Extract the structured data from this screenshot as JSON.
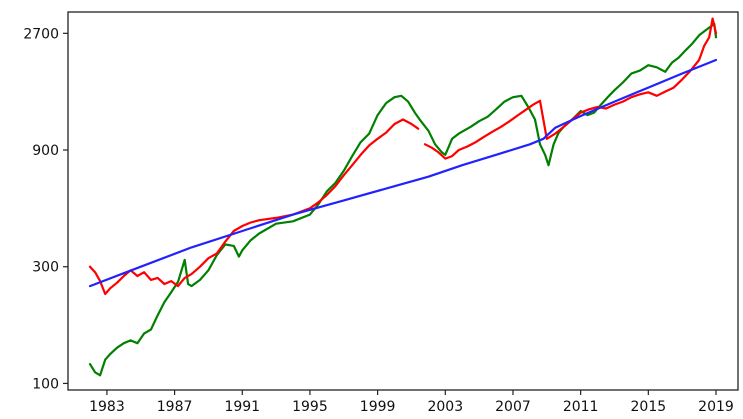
{
  "chart_data": {
    "type": "line",
    "title": "",
    "xlabel": "",
    "ylabel": "",
    "y_scale": "log",
    "xlim": [
      1980.7,
      2020.3
    ],
    "ylim": [
      94,
      3300
    ],
    "x_ticks": [
      1983,
      1987,
      1991,
      1995,
      1999,
      2003,
      2007,
      2011,
      2015,
      2019
    ],
    "y_ticks": [
      100,
      300,
      900,
      2700
    ],
    "grid": false,
    "legend": "none",
    "series": [
      {
        "color": "#008000",
        "x": [
          1982.0,
          1982.3,
          1982.6,
          1982.9,
          1983.2,
          1983.6,
          1984.0,
          1984.4,
          1984.8,
          1985.2,
          1985.6,
          1986.0,
          1986.4,
          1986.8,
          1987.2,
          1987.6,
          1987.8,
          1988.0,
          1988.5,
          1989.0,
          1989.5,
          1990.0,
          1990.5,
          1990.8,
          1991.0,
          1991.5,
          1992.0,
          1993.0,
          1994.0,
          1995.0,
          1995.5,
          1996.0,
          1996.5,
          1997.0,
          1997.5,
          1998.0,
          1998.5,
          1999.0,
          1999.5,
          2000.0,
          2000.4,
          2000.8,
          2001.2,
          2001.6,
          2002.0,
          2002.4,
          2002.8,
          2003.0,
          2003.4,
          2003.8,
          2004.5,
          2005.0,
          2005.5,
          2006.0,
          2006.5,
          2007.0,
          2007.5,
          2007.9,
          2008.3,
          2008.6,
          2008.9,
          2009.1,
          2009.4,
          2009.7,
          2010.0,
          2010.5,
          2011.0,
          2011.4,
          2011.8,
          2012.2,
          2012.6,
          2013.0,
          2013.5,
          2014.0,
          2014.5,
          2015.0,
          2015.5,
          2016.0,
          2016.4,
          2016.8,
          2017.2,
          2017.6,
          2018.0,
          2018.3,
          2018.6,
          2018.9,
          2019.0
        ],
        "values": [
          120,
          111,
          108,
          125,
          132,
          140,
          146,
          150,
          146,
          160,
          166,
          190,
          215,
          236,
          260,
          320,
          255,
          250,
          265,
          290,
          335,
          370,
          365,
          330,
          350,
          385,
          410,
          450,
          460,
          490,
          540,
          610,
          660,
          740,
          850,
          970,
          1050,
          1250,
          1400,
          1480,
          1500,
          1420,
          1280,
          1170,
          1080,
          950,
          880,
          860,
          1000,
          1050,
          1120,
          1180,
          1230,
          1320,
          1420,
          1480,
          1500,
          1350,
          1200,
          950,
          860,
          780,
          950,
          1060,
          1120,
          1200,
          1300,
          1250,
          1280,
          1380,
          1480,
          1580,
          1700,
          1850,
          1900,
          2000,
          1960,
          1880,
          2050,
          2150,
          2300,
          2450,
          2650,
          2750,
          2850,
          2950,
          2600
        ]
      },
      {
        "color": "#ff0000",
        "x": [
          1982.0,
          1982.3,
          1982.6,
          1982.9,
          1983.2,
          1983.6,
          1984.0,
          1984.4,
          1984.8,
          1985.2,
          1985.6,
          1986.0,
          1986.4,
          1986.8,
          1987.2,
          1987.6,
          1988.0,
          1988.5,
          1989.0,
          1989.5,
          1990.0,
          1990.5,
          1991.0,
          1991.5,
          1992.0,
          1993.0,
          1994.0,
          1995.0,
          1995.5,
          1996.0,
          1996.5,
          1997.0,
          1997.5,
          1998.0,
          1998.5,
          1999.0,
          1999.5,
          2000.0,
          2000.5,
          2001.0,
          2001.4,
          null,
          2001.8,
          2002.2,
          2002.6,
          2003.0,
          2003.4,
          2003.8,
          2004.3,
          2004.8,
          2005.3,
          2005.8,
          2006.3,
          2006.8,
          2007.3,
          2007.8,
          2008.2,
          2008.6,
          2009.0,
          2009.5,
          2010.0,
          2010.5,
          2011.0,
          2011.5,
          2012.0,
          2012.5,
          2013.0,
          2013.5,
          2014.0,
          2014.5,
          2015.0,
          2015.5,
          2016.0,
          2016.5,
          2017.0,
          2017.5,
          2018.0,
          2018.3,
          2018.6,
          2018.8,
          2019.0
        ],
        "values": [
          300,
          285,
          262,
          232,
          245,
          258,
          275,
          290,
          275,
          285,
          265,
          270,
          255,
          262,
          250,
          270,
          280,
          300,
          325,
          340,
          380,
          420,
          440,
          455,
          465,
          475,
          490,
          520,
          550,
          590,
          640,
          710,
          780,
          860,
          940,
          1000,
          1060,
          1150,
          1200,
          1150,
          1100,
          null,
          950,
          920,
          880,
          830,
          850,
          900,
          930,
          970,
          1020,
          1070,
          1120,
          1180,
          1250,
          1320,
          1380,
          1430,
          1000,
          1050,
          1120,
          1200,
          1280,
          1320,
          1350,
          1330,
          1380,
          1420,
          1480,
          1520,
          1550,
          1500,
          1560,
          1620,
          1750,
          1900,
          2100,
          2400,
          2600,
          3100,
          2700
        ]
      },
      {
        "color": "#2222ff",
        "x": [
          1982.0,
          1985.0,
          1988.0,
          1991.0,
          1994.0,
          1997.0,
          2000.0,
          2002.0,
          2004.0,
          2006.0,
          2008.0,
          2008.8,
          2009.5,
          2011.0,
          2013.0,
          2015.0,
          2017.0,
          2019.0
        ],
        "values": [
          250,
          300,
          360,
          420,
          490,
          560,
          640,
          700,
          780,
          860,
          950,
          1000,
          1110,
          1240,
          1420,
          1620,
          1850,
          2100
        ]
      }
    ]
  }
}
